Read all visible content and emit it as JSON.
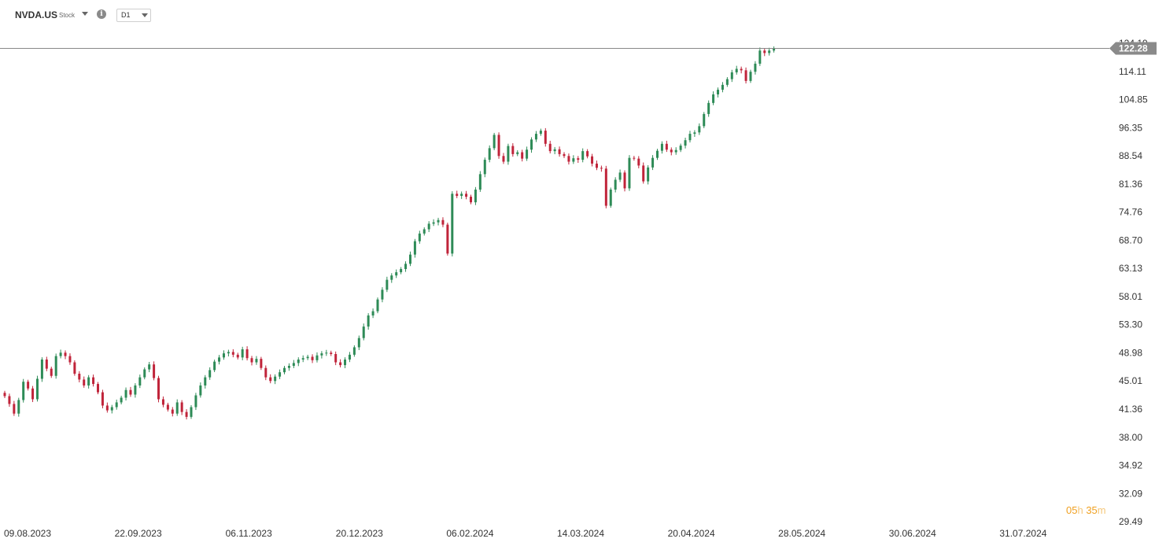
{
  "header": {
    "symbol": "NVDA.US",
    "instrument_type": "Stock",
    "timeframe": "D1",
    "info_icon": "info-icon"
  },
  "countdown": {
    "hours": "05",
    "hours_unit": "h",
    "minutes": "35",
    "minutes_unit": "m"
  },
  "colors": {
    "up": "#2e8b57",
    "down": "#c0243a",
    "price_line": "#888888",
    "price_label_bg": "#8a8a8a",
    "countdown": "#f0a020"
  },
  "chart_data": {
    "type": "candlestick",
    "title": "",
    "symbol": "NVDA.US",
    "timeframe": "D1",
    "current_price": "122.28",
    "y_scale": "log",
    "y_ticks": [
      "124.19",
      "114.11",
      "104.85",
      "96.35",
      "88.54",
      "81.36",
      "74.76",
      "68.70",
      "63.13",
      "58.01",
      "53.30",
      "48.98",
      "45.01",
      "41.36",
      "38.00",
      "34.92",
      "32.09",
      "29.49"
    ],
    "x_ticks": [
      "09.08.2023",
      "22.09.2023",
      "06.11.2023",
      "20.12.2023",
      "06.02.2024",
      "14.03.2024",
      "20.04.2024",
      "28.05.2024",
      "30.06.2024",
      "31.07.2024"
    ],
    "ylim": [
      29.49,
      127
    ],
    "grid": false,
    "closes_approx": [
      43.0,
      42.0,
      40.8,
      42.5,
      44.9,
      44.0,
      42.6,
      45.3,
      48.0,
      46.7,
      45.7,
      48.5,
      49.0,
      48.5,
      47.6,
      46.0,
      45.2,
      44.4,
      45.5,
      44.6,
      43.5,
      41.8,
      41.2,
      41.6,
      42.2,
      42.8,
      43.8,
      43.2,
      44.4,
      45.5,
      46.6,
      47.3,
      45.4,
      42.6,
      41.9,
      41.3,
      40.8,
      42.2,
      41.0,
      40.4,
      41.6,
      43.1,
      44.4,
      45.5,
      46.5,
      47.7,
      48.3,
      48.9,
      49.1,
      48.7,
      48.3,
      49.5,
      48.2,
      47.6,
      48.1,
      46.8,
      45.5,
      45.0,
      45.6,
      46.2,
      46.8,
      47.1,
      47.5,
      48.0,
      48.2,
      48.4,
      47.9,
      48.6,
      48.9,
      49.0,
      48.8,
      47.6,
      47.2,
      48.0,
      48.7,
      49.8,
      51.2,
      53.0,
      54.8,
      55.5,
      57.5,
      59.2,
      61.0,
      61.8,
      62.4,
      63.0,
      64.0,
      65.8,
      68.5,
      70.1,
      71.0,
      72.2,
      72.5,
      73.0,
      72.0,
      66.0,
      79.0,
      78.5,
      79.0,
      78.3,
      77.0,
      80.0,
      83.8,
      87.5,
      90.6,
      94.3,
      88.5,
      87.0,
      91.2,
      89.0,
      89.5,
      87.8,
      90.2,
      93.0,
      94.6,
      95.5,
      91.8,
      89.8,
      90.3,
      89.0,
      88.5,
      87.0,
      87.9,
      87.5,
      89.8,
      88.4,
      86.5,
      85.4,
      85.2,
      76.2,
      80.0,
      82.4,
      84.2,
      80.3,
      88.0,
      87.8,
      86.0,
      82.0,
      85.5,
      88.0,
      89.9,
      91.8,
      90.2,
      89.5,
      90.1,
      91.3,
      92.8,
      94.6,
      95.0,
      96.8,
      100.4,
      103.8,
      106.5,
      108.0,
      109.6,
      111.5,
      113.8,
      115.0,
      114.5,
      110.9,
      114.0,
      116.8,
      121.5,
      120.6,
      121.5,
      122.28
    ]
  }
}
